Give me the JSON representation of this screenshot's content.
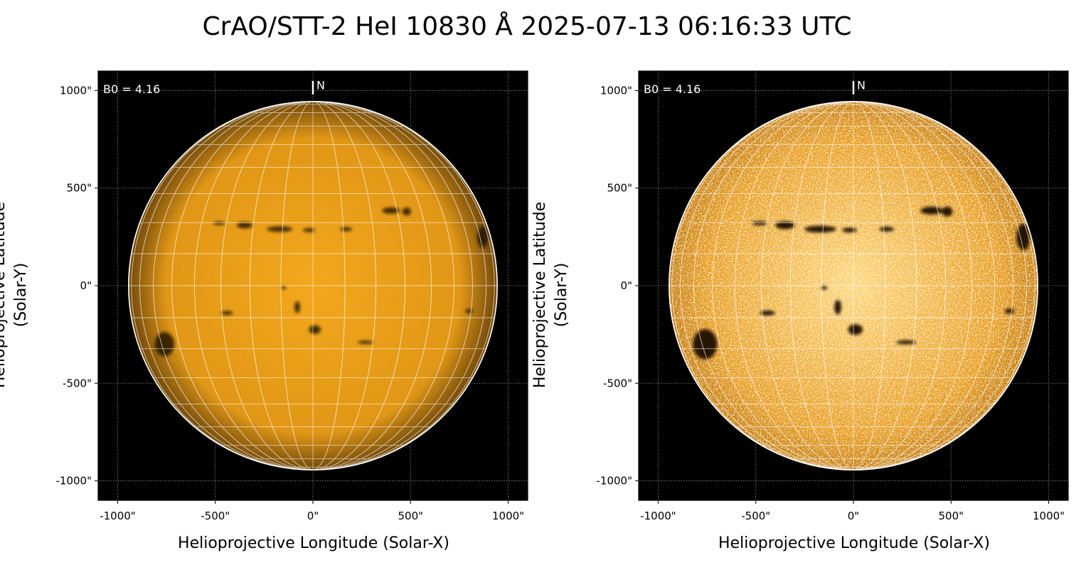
{
  "title": "CrAO/STT-2 HeI 10830 Å 2025-07-13 06:16:33 UTC",
  "axes": {
    "xlabel": "Helioprojective Longitude (Solar-X)",
    "ylabel": "Helioprojective Latitude (Solar-Y)",
    "xlim": [
      -1100,
      1100
    ],
    "ylim": [
      -1100,
      1100
    ],
    "ticks": [
      -1000,
      -500,
      0,
      500,
      1000
    ],
    "tick_labels": [
      "-1000\"",
      "-500\"",
      "0\"",
      "500\"",
      "1000\""
    ],
    "grid": true
  },
  "solar": {
    "radius_arcsec": 944,
    "b0_label": "B0 = 4.16",
    "north_label": "N",
    "grid_step_deg": 10
  },
  "panels": [
    {
      "id": "left",
      "variant": "normal"
    },
    {
      "id": "right",
      "variant": "enhanced"
    }
  ],
  "colors": {
    "background": "#000000",
    "disk_center": "#f2a516",
    "disk_edge": "#6e4404",
    "enhanced_center": "#ffd67a",
    "enhanced_edge": "#c77e10",
    "grid": "#ffffff",
    "filament": "#1a0f04"
  },
  "features": [
    {
      "x": -350,
      "y": 310,
      "rx": 40,
      "ry": 16,
      "kind": "filament"
    },
    {
      "x": -170,
      "y": 290,
      "rx": 65,
      "ry": 14,
      "kind": "filament"
    },
    {
      "x": -20,
      "y": 285,
      "rx": 30,
      "ry": 10,
      "kind": "filament"
    },
    {
      "x": 400,
      "y": 385,
      "rx": 45,
      "ry": 16,
      "kind": "spot"
    },
    {
      "x": 480,
      "y": 380,
      "rx": 22,
      "ry": 20,
      "kind": "spot"
    },
    {
      "x": -760,
      "y": -300,
      "rx": 50,
      "ry": 62,
      "kind": "spot"
    },
    {
      "x": 10,
      "y": -225,
      "rx": 30,
      "ry": 22,
      "kind": "spot"
    },
    {
      "x": -80,
      "y": -110,
      "rx": 14,
      "ry": 30,
      "kind": "filament"
    },
    {
      "x": -440,
      "y": -140,
      "rx": 30,
      "ry": 10,
      "kind": "filament"
    },
    {
      "x": 870,
      "y": 250,
      "rx": 28,
      "ry": 55,
      "kind": "spot"
    },
    {
      "x": 800,
      "y": -130,
      "rx": 20,
      "ry": 10,
      "kind": "filament"
    },
    {
      "x": 270,
      "y": -290,
      "rx": 40,
      "ry": 8,
      "kind": "filament"
    },
    {
      "x": 170,
      "y": 290,
      "rx": 30,
      "ry": 10,
      "kind": "filament"
    },
    {
      "x": -150,
      "y": -10,
      "rx": 12,
      "ry": 8,
      "kind": "spot"
    },
    {
      "x": -480,
      "y": 320,
      "rx": 30,
      "ry": 8,
      "kind": "filament"
    }
  ]
}
